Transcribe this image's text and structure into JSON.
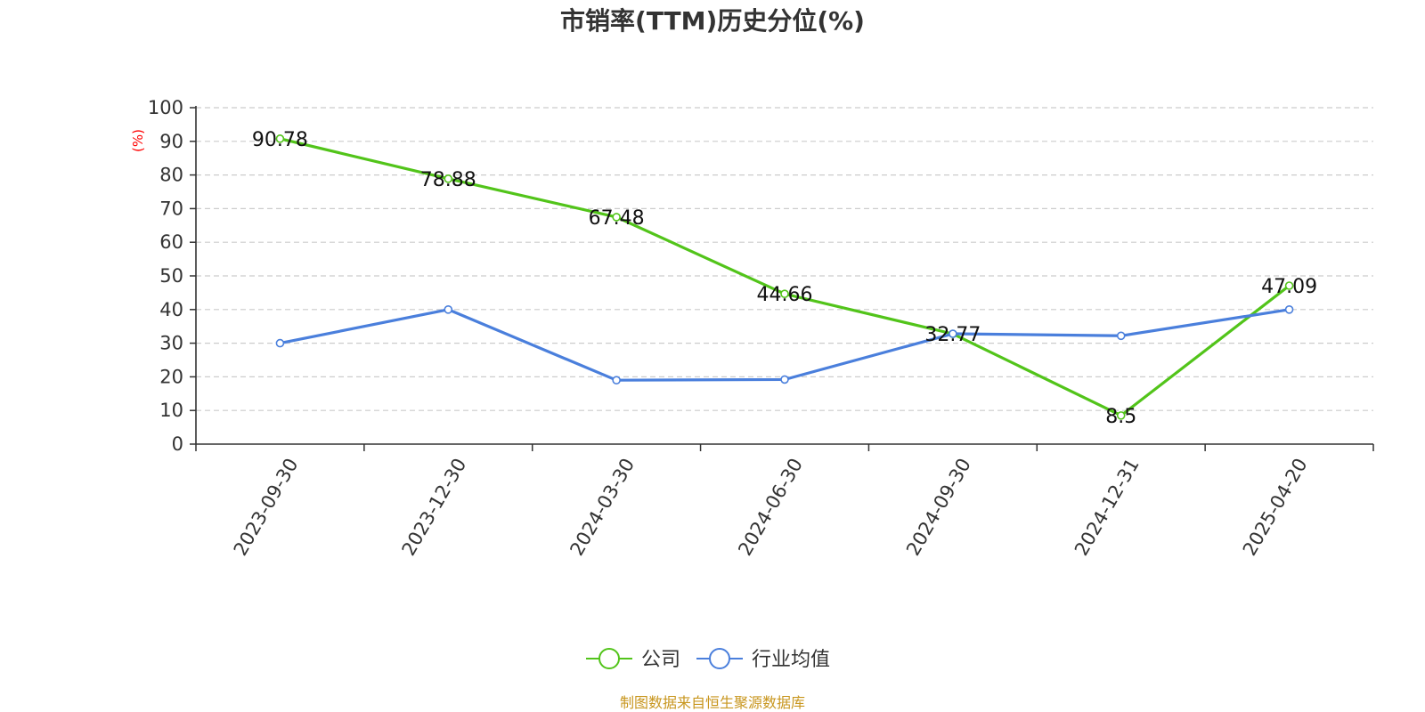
{
  "chart_data": {
    "type": "line",
    "title": "市销率(TTM)历史分位(%)",
    "ylabel": "(%)",
    "ylim": [
      0,
      100
    ],
    "yticks": [
      0,
      10,
      20,
      30,
      40,
      50,
      60,
      70,
      80,
      90,
      100
    ],
    "categories": [
      "2023-09-30",
      "2023-12-30",
      "2024-03-30",
      "2024-06-30",
      "2024-09-30",
      "2024-12-31",
      "2025-04-20"
    ],
    "grid": true,
    "legend_position": "bottom-center",
    "series": [
      {
        "name": "公司",
        "color": "#52c41a",
        "values": [
          90.78,
          78.88,
          67.48,
          44.66,
          32.77,
          8.5,
          47.09
        ],
        "labels": [
          "90.78",
          "78.88",
          "67.48",
          "44.66",
          "32.77",
          "8.5",
          "47.09"
        ]
      },
      {
        "name": "行业均值",
        "color": "#4a7fdc",
        "values": [
          30.0,
          40.0,
          19.0,
          19.2,
          32.8,
          32.2,
          40.0
        ]
      }
    ],
    "source": "制图数据来自恒生聚源数据库"
  }
}
